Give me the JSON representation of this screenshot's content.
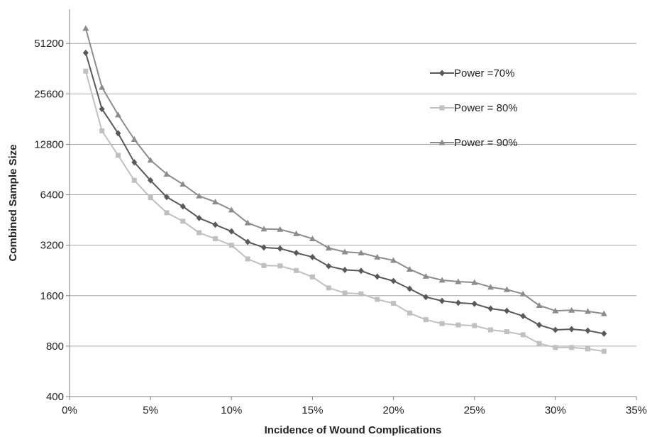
{
  "chart_data": {
    "type": "line",
    "xlabel": "Incidence of Wound Complications",
    "ylabel": "Combined Sample Size",
    "xlim": [
      0,
      35
    ],
    "ylim": [
      400,
      81920
    ],
    "y_scale": "log2",
    "x_ticks": [
      0,
      5,
      10,
      15,
      20,
      25,
      30,
      35
    ],
    "x_tick_labels": [
      "0%",
      "5%",
      "10%",
      "15%",
      "20%",
      "25%",
      "30%",
      "35%"
    ],
    "y_ticks": [
      400,
      800,
      1600,
      3200,
      6400,
      12800,
      25600,
      51200
    ],
    "y_tick_labels": [
      "400",
      "800",
      "1600",
      "3200",
      "6400",
      "12800",
      "25600",
      "51200"
    ],
    "grid": "horizontal",
    "legend_position": "top-right",
    "x": [
      1,
      2,
      3,
      4,
      5,
      6,
      7,
      8,
      9,
      10,
      11,
      12,
      13,
      14,
      15,
      16,
      17,
      18,
      19,
      20,
      21,
      22,
      23,
      24,
      25,
      26,
      27,
      28,
      29,
      30,
      31,
      32,
      33
    ],
    "series": [
      {
        "name": "Power =70%",
        "color": "#595959",
        "marker": "diamond",
        "values": [
          45000,
          20800,
          14900,
          10000,
          7800,
          6200,
          5450,
          4650,
          4240,
          3870,
          3350,
          3100,
          3060,
          2880,
          2720,
          2400,
          2280,
          2250,
          2080,
          1960,
          1760,
          1570,
          1490,
          1450,
          1430,
          1340,
          1300,
          1210,
          1070,
          1000,
          1010,
          990,
          950
        ]
      },
      {
        "name": "Power = 80%",
        "color": "#c0c0c0",
        "marker": "square",
        "values": [
          35000,
          15400,
          11000,
          7800,
          6150,
          5000,
          4450,
          3800,
          3500,
          3200,
          2650,
          2420,
          2410,
          2260,
          2070,
          1780,
          1660,
          1640,
          1520,
          1440,
          1260,
          1150,
          1090,
          1070,
          1060,
          1000,
          975,
          935,
          830,
          785,
          785,
          770,
          745
        ]
      },
      {
        "name": "Power = 90%",
        "color": "#8c8c8c",
        "marker": "triangle",
        "values": [
          63000,
          28000,
          19200,
          13700,
          10300,
          8500,
          7400,
          6300,
          5800,
          5200,
          4350,
          4000,
          3980,
          3750,
          3500,
          3080,
          2920,
          2880,
          2720,
          2600,
          2300,
          2090,
          1980,
          1940,
          1920,
          1800,
          1740,
          1640,
          1400,
          1300,
          1310,
          1290,
          1250
        ]
      }
    ]
  }
}
